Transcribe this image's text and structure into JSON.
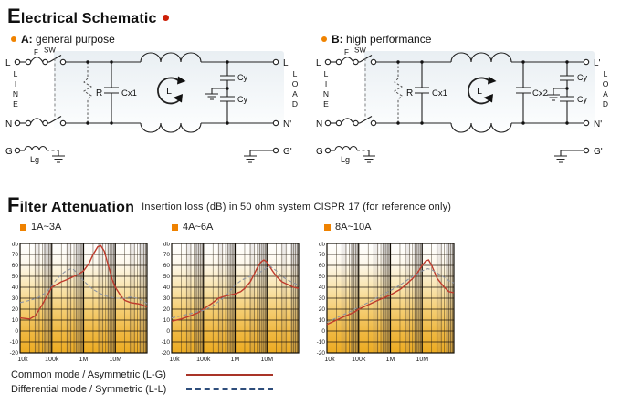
{
  "header": {
    "section1_title": "Electrical Schematic",
    "section2_title": "Filter Attenuation",
    "section2_subtitle": "Insertion loss (dB) in 50 ohm system CISPR 17 (for reference only)"
  },
  "schematics": {
    "a": {
      "prefix": "A:",
      "label": "general purpose"
    },
    "b": {
      "prefix": "B:",
      "label": "high performance"
    },
    "labels": {
      "input_line": "L",
      "input_neutral": "N",
      "input_ground": "G",
      "output_line": "L'",
      "output_neutral": "N'",
      "output_ground": "G'",
      "fuse": "F",
      "switch": "SW",
      "resistor": "R",
      "cap_x1": "Cx1",
      "cap_x2": "Cx2",
      "cap_y": "Cy",
      "ground_choke": "Lg",
      "choke": "L",
      "line_letters": [
        "L",
        "I",
        "N",
        "E"
      ],
      "load_letters": [
        "L",
        "O",
        "A",
        "D"
      ]
    }
  },
  "legend": {
    "items": [
      {
        "label": "Common mode / Asymmetric (L-G)",
        "line": "solid",
        "color": "#a93428"
      },
      {
        "label": "Differential mode / Symmetric (L-L)",
        "line": "dashed",
        "color": "#2e4d7b"
      }
    ]
  },
  "chart_data": [
    {
      "type": "line",
      "title": "1A~3A",
      "ylabel": "db",
      "x_tick_labels": [
        "10k",
        "100k",
        "1M",
        "10M"
      ],
      "x_range_hz": [
        10000,
        100000000
      ],
      "ylim": [
        -20,
        80
      ],
      "y_tick_step": 10,
      "grid": true,
      "series": [
        {
          "name": "Common mode / Asymmetric (L-G)",
          "style": "solid",
          "color": "#bf3b2c",
          "points": [
            [
              10000,
              12
            ],
            [
              20000,
              11
            ],
            [
              30000,
              14
            ],
            [
              50000,
              24
            ],
            [
              70000,
              32
            ],
            [
              100000,
              40
            ],
            [
              150000,
              43
            ],
            [
              200000,
              45
            ],
            [
              300000,
              47
            ],
            [
              500000,
              50
            ],
            [
              700000,
              52
            ],
            [
              1000000,
              55
            ],
            [
              1500000,
              62
            ],
            [
              2000000,
              70
            ],
            [
              2800000,
              77
            ],
            [
              3500000,
              78
            ],
            [
              4500000,
              73
            ],
            [
              6000000,
              60
            ],
            [
              8000000,
              47
            ],
            [
              10000000,
              40
            ],
            [
              15000000,
              32
            ],
            [
              20000000,
              28
            ],
            [
              30000000,
              26
            ],
            [
              50000000,
              25
            ],
            [
              70000000,
              24
            ],
            [
              100000000,
              22
            ]
          ]
        },
        {
          "name": "Differential mode / Symmetric (L-L)",
          "style": "dashed",
          "color": "#8d94a2",
          "points": [
            [
              10000,
              26
            ],
            [
              20000,
              28
            ],
            [
              40000,
              31
            ],
            [
              70000,
              36
            ],
            [
              100000,
              42
            ],
            [
              150000,
              48
            ],
            [
              250000,
              54
            ],
            [
              400000,
              57
            ],
            [
              500000,
              56
            ],
            [
              700000,
              51
            ],
            [
              1000000,
              46
            ],
            [
              1500000,
              41
            ],
            [
              2000000,
              38
            ],
            [
              3000000,
              35
            ],
            [
              5000000,
              32
            ],
            [
              10000000,
              30
            ],
            [
              20000000,
              30
            ],
            [
              30000000,
              31
            ],
            [
              50000000,
              30
            ],
            [
              70000000,
              28
            ],
            [
              100000000,
              25
            ]
          ]
        }
      ]
    },
    {
      "type": "line",
      "title": "4A~6A",
      "ylabel": "db",
      "x_tick_labels": [
        "10k",
        "100k",
        "1M",
        "10M"
      ],
      "x_range_hz": [
        10000,
        100000000
      ],
      "ylim": [
        -20,
        80
      ],
      "y_tick_step": 10,
      "grid": true,
      "series": [
        {
          "name": "Common mode / Asymmetric (L-G)",
          "style": "solid",
          "color": "#bf3b2c",
          "points": [
            [
              10000,
              9
            ],
            [
              20000,
              11
            ],
            [
              40000,
              14
            ],
            [
              70000,
              17
            ],
            [
              100000,
              20
            ],
            [
              200000,
              26
            ],
            [
              300000,
              30
            ],
            [
              500000,
              32
            ],
            [
              700000,
              33
            ],
            [
              1000000,
              34
            ],
            [
              1500000,
              36
            ],
            [
              2000000,
              39
            ],
            [
              3000000,
              45
            ],
            [
              4000000,
              52
            ],
            [
              5000000,
              58
            ],
            [
              6500000,
              63
            ],
            [
              8000000,
              65
            ],
            [
              10000000,
              63
            ],
            [
              15000000,
              55
            ],
            [
              20000000,
              50
            ],
            [
              30000000,
              45
            ],
            [
              50000000,
              42
            ],
            [
              70000000,
              40
            ],
            [
              100000000,
              39
            ]
          ]
        },
        {
          "name": "Differential mode / Symmetric (L-L)",
          "style": "dashed",
          "color": "#8d94a2",
          "points": [
            [
              10000,
              12
            ],
            [
              20000,
              14
            ],
            [
              40000,
              16
            ],
            [
              100000,
              19
            ],
            [
              200000,
              23
            ],
            [
              300000,
              27
            ],
            [
              500000,
              32
            ],
            [
              700000,
              37
            ],
            [
              1000000,
              42
            ],
            [
              1500000,
              46
            ],
            [
              2000000,
              48
            ],
            [
              3000000,
              50
            ],
            [
              5000000,
              52
            ],
            [
              7000000,
              55
            ],
            [
              10000000,
              58
            ],
            [
              13000000,
              59
            ],
            [
              20000000,
              55
            ],
            [
              30000000,
              50
            ],
            [
              50000000,
              46
            ],
            [
              70000000,
              44
            ],
            [
              100000000,
              42
            ]
          ]
        }
      ]
    },
    {
      "type": "line",
      "title": "8A~10A",
      "ylabel": "db",
      "x_tick_labels": [
        "10k",
        "100k",
        "1M",
        "10M"
      ],
      "x_range_hz": [
        10000,
        100000000
      ],
      "ylim": [
        -20,
        80
      ],
      "y_tick_step": 10,
      "grid": true,
      "series": [
        {
          "name": "Common mode / Asymmetric (L-G)",
          "style": "solid",
          "color": "#bf3b2c",
          "points": [
            [
              10000,
              6
            ],
            [
              20000,
              10
            ],
            [
              40000,
              14
            ],
            [
              70000,
              17
            ],
            [
              100000,
              20
            ],
            [
              200000,
              24
            ],
            [
              400000,
              28
            ],
            [
              700000,
              31
            ],
            [
              1000000,
              33
            ],
            [
              2000000,
              38
            ],
            [
              3000000,
              42
            ],
            [
              5000000,
              48
            ],
            [
              7000000,
              53
            ],
            [
              10000000,
              60
            ],
            [
              13000000,
              64
            ],
            [
              16000000,
              65
            ],
            [
              20000000,
              60
            ],
            [
              30000000,
              48
            ],
            [
              50000000,
              40
            ],
            [
              70000000,
              36
            ],
            [
              100000000,
              35
            ]
          ]
        },
        {
          "name": "Differential mode / Symmetric (L-L)",
          "style": "dashed",
          "color": "#8d94a2",
          "points": [
            [
              10000,
              8
            ],
            [
              20000,
              12
            ],
            [
              40000,
              16
            ],
            [
              100000,
              22
            ],
            [
              200000,
              26
            ],
            [
              400000,
              31
            ],
            [
              1000000,
              37
            ],
            [
              2000000,
              42
            ],
            [
              4000000,
              48
            ],
            [
              7000000,
              52
            ],
            [
              10000000,
              55
            ],
            [
              15000000,
              57
            ],
            [
              20000000,
              56
            ],
            [
              30000000,
              53
            ],
            [
              50000000,
              49
            ],
            [
              70000000,
              46
            ],
            [
              100000000,
              44
            ]
          ]
        }
      ]
    }
  ]
}
